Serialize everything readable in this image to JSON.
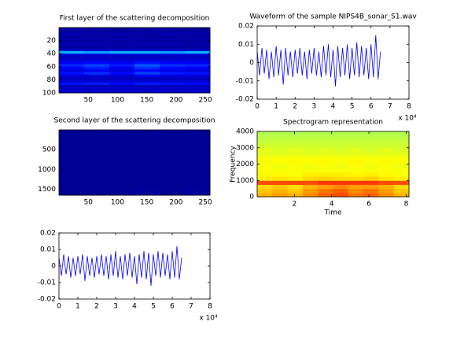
{
  "chart_data": [
    {
      "type": "heatmap",
      "title": "First layer of the scattering decomposition",
      "xlim": [
        0,
        258
      ],
      "ylim": [
        0,
        100
      ],
      "y_reversed": true,
      "xticks": [
        50,
        100,
        150,
        200,
        250
      ],
      "yticks": [
        20,
        40,
        60,
        80,
        100
      ],
      "colormap": "jet",
      "z": [
        [
          0.04,
          0.04,
          0.03,
          0.04,
          0.04,
          0.03
        ],
        [
          0.03,
          0.03,
          0.03,
          0.03,
          0.03,
          0.03
        ],
        [
          0.05,
          0.04,
          0.05,
          0.04,
          0.05,
          0.04
        ],
        [
          0.03,
          0.03,
          0.03,
          0.03,
          0.03,
          0.03
        ],
        [
          0.04,
          0.04,
          0.04,
          0.04,
          0.04,
          0.04
        ],
        [
          0.03,
          0.03,
          0.03,
          0.03,
          0.03,
          0.03
        ],
        [
          0.05,
          0.05,
          0.04,
          0.05,
          0.05,
          0.04
        ],
        [
          0.03,
          0.03,
          0.03,
          0.03,
          0.03,
          0.03
        ],
        [
          0.06,
          0.06,
          0.06,
          0.06,
          0.06,
          0.06
        ],
        [
          0.3,
          0.28,
          0.3,
          0.3,
          0.28,
          0.3
        ],
        [
          0.08,
          0.08,
          0.08,
          0.08,
          0.08,
          0.08
        ],
        [
          0.06,
          0.06,
          0.06,
          0.06,
          0.06,
          0.06
        ],
        [
          0.08,
          0.09,
          0.08,
          0.09,
          0.08,
          0.09
        ],
        [
          0.11,
          0.13,
          0.11,
          0.14,
          0.12,
          0.11
        ],
        [
          0.16,
          0.19,
          0.15,
          0.21,
          0.17,
          0.16
        ],
        [
          0.12,
          0.15,
          0.11,
          0.17,
          0.13,
          0.12
        ],
        [
          0.09,
          0.11,
          0.09,
          0.13,
          0.1,
          0.09
        ],
        [
          0.14,
          0.17,
          0.13,
          0.19,
          0.15,
          0.14
        ],
        [
          0.09,
          0.09,
          0.08,
          0.11,
          0.09,
          0.09
        ],
        [
          0.06,
          0.06,
          0.06,
          0.06,
          0.06,
          0.06
        ],
        [
          0.08,
          0.08,
          0.08,
          0.08,
          0.08,
          0.08
        ],
        [
          0.14,
          0.15,
          0.13,
          0.15,
          0.14,
          0.13
        ],
        [
          0.06,
          0.06,
          0.06,
          0.06,
          0.06,
          0.06
        ],
        [
          0.07,
          0.07,
          0.07,
          0.07,
          0.07,
          0.07
        ],
        [
          0.08,
          0.08,
          0.08,
          0.08,
          0.08,
          0.08
        ]
      ]
    },
    {
      "type": "line",
      "title": "Waveform of the sample NIPS4B_sonar_S1.wav",
      "color": "#0000ff",
      "xlim": [
        0,
        8
      ],
      "ylim": [
        -0.02,
        0.02
      ],
      "xticks": [
        0,
        1,
        2,
        3,
        4,
        5,
        6,
        7,
        8
      ],
      "yticks": [
        -0.02,
        -0.01,
        0,
        0.01,
        0.02
      ],
      "x_scale_label": "x 10⁴",
      "x": [
        0,
        0.125,
        0.25,
        0.375,
        0.5,
        0.625,
        0.75,
        0.875,
        1,
        1.125,
        1.25,
        1.375,
        1.5,
        1.625,
        1.75,
        1.875,
        2,
        2.125,
        2.25,
        2.375,
        2.5,
        2.625,
        2.75,
        2.875,
        3,
        3.125,
        3.25,
        3.375,
        3.5,
        3.625,
        3.75,
        3.875,
        4,
        4.125,
        4.25,
        4.375,
        4.5,
        4.625,
        4.75,
        4.875,
        5,
        5.125,
        5.25,
        5.375,
        5.5,
        5.625,
        5.75,
        5.875,
        6,
        6.125,
        6.25,
        6.375,
        6.5
      ],
      "values": [
        0.006,
        -0.007,
        0.008,
        -0.006,
        0.007,
        -0.009,
        0.006,
        -0.008,
        0.009,
        -0.007,
        0.007,
        -0.012,
        0.008,
        -0.007,
        0.006,
        -0.008,
        0.007,
        -0.006,
        0.008,
        -0.007,
        0.006,
        -0.009,
        0.007,
        -0.006,
        0.008,
        -0.007,
        0.006,
        -0.008,
        0.009,
        -0.007,
        0.01,
        -0.008,
        0.007,
        -0.013,
        0.009,
        -0.008,
        0.008,
        -0.007,
        0.01,
        -0.009,
        0.008,
        -0.007,
        0.011,
        -0.008,
        0.009,
        -0.007,
        0.008,
        -0.009,
        0.01,
        -0.008,
        0.015,
        -0.009,
        0.006
      ]
    },
    {
      "type": "heatmap",
      "title": "Second layer of the scattering decomposition",
      "xlim": [
        0,
        258
      ],
      "ylim": [
        0,
        1650
      ],
      "y_reversed": true,
      "xticks": [
        50,
        100,
        150,
        200,
        250
      ],
      "yticks": [
        500,
        1000,
        1500
      ],
      "colormap": "jet",
      "z": [
        [
          0.02,
          0.02,
          0.02,
          0.02,
          0.02,
          0.02
        ],
        [
          0.02,
          0.02,
          0.02,
          0.02,
          0.02,
          0.02
        ],
        [
          0.02,
          0.02,
          0.02,
          0.02,
          0.02,
          0.02
        ],
        [
          0.02,
          0.02,
          0.02,
          0.02,
          0.02,
          0.02
        ],
        [
          0.02,
          0.02,
          0.02,
          0.02,
          0.02,
          0.02
        ],
        [
          0.02,
          0.02,
          0.02,
          0.02,
          0.02,
          0.02
        ],
        [
          0.02,
          0.02,
          0.02,
          0.02,
          0.02,
          0.02
        ],
        [
          0.02,
          0.02,
          0.02,
          0.02,
          0.02,
          0.02
        ],
        [
          0.02,
          0.02,
          0.02,
          0.02,
          0.02,
          0.02
        ],
        [
          0.02,
          0.02,
          0.02,
          0.03,
          0.02,
          0.03
        ]
      ]
    },
    {
      "type": "spectrogram",
      "title": "Spectrogram representation",
      "xlabel": "Time",
      "ylabel": "Frequency",
      "xlim": [
        0,
        8.15
      ],
      "ylim": [
        0,
        4000
      ],
      "xticks": [
        2,
        4,
        6,
        8
      ],
      "yticks": [
        0,
        1000,
        2000,
        3000,
        4000
      ],
      "colormap": "jet",
      "z": [
        [
          0.7,
          0.72,
          0.7,
          0.74,
          0.78,
          0.8,
          0.76,
          0.78,
          0.74,
          0.7
        ],
        [
          0.68,
          0.7,
          0.68,
          0.72,
          0.76,
          0.78,
          0.74,
          0.76,
          0.72,
          0.68
        ],
        [
          0.66,
          0.68,
          0.66,
          0.7,
          0.72,
          0.74,
          0.72,
          0.72,
          0.7,
          0.66
        ],
        [
          0.8,
          0.8,
          0.8,
          0.8,
          0.82,
          0.82,
          0.82,
          0.82,
          0.8,
          0.8
        ],
        [
          0.64,
          0.65,
          0.64,
          0.66,
          0.67,
          0.66,
          0.66,
          0.67,
          0.65,
          0.64
        ],
        [
          0.63,
          0.63,
          0.62,
          0.64,
          0.64,
          0.64,
          0.63,
          0.64,
          0.63,
          0.62
        ],
        [
          0.62,
          0.62,
          0.62,
          0.62,
          0.62,
          0.62,
          0.62,
          0.62,
          0.62,
          0.62
        ],
        [
          0.62,
          0.61,
          0.62,
          0.61,
          0.62,
          0.61,
          0.62,
          0.61,
          0.62,
          0.61
        ],
        [
          0.63,
          0.62,
          0.63,
          0.62,
          0.63,
          0.62,
          0.63,
          0.62,
          0.63,
          0.62
        ],
        [
          0.62,
          0.62,
          0.62,
          0.62,
          0.62,
          0.62,
          0.62,
          0.62,
          0.62,
          0.62
        ],
        [
          0.6,
          0.6,
          0.6,
          0.6,
          0.6,
          0.6,
          0.6,
          0.6,
          0.6,
          0.6
        ],
        [
          0.6,
          0.59,
          0.6,
          0.59,
          0.6,
          0.59,
          0.6,
          0.59,
          0.6,
          0.59
        ],
        [
          0.58,
          0.58,
          0.58,
          0.58,
          0.58,
          0.58,
          0.58,
          0.58,
          0.58,
          0.58
        ],
        [
          0.57,
          0.57,
          0.57,
          0.57,
          0.57,
          0.57,
          0.57,
          0.57,
          0.57,
          0.57
        ],
        [
          0.56,
          0.56,
          0.56,
          0.56,
          0.56,
          0.56,
          0.56,
          0.56,
          0.56,
          0.56
        ],
        [
          0.55,
          0.55,
          0.55,
          0.55,
          0.55,
          0.55,
          0.55,
          0.55,
          0.55,
          0.55
        ]
      ]
    },
    {
      "type": "line",
      "color": "#0000ff",
      "xlim": [
        0,
        8
      ],
      "ylim": [
        -0.02,
        0.02
      ],
      "xticks": [
        0,
        1,
        2,
        3,
        4,
        5,
        6,
        7,
        8
      ],
      "yticks": [
        -0.02,
        -0.01,
        0,
        0.01,
        0.02
      ],
      "x_scale_label": "x 10⁴",
      "x": [
        0,
        0.125,
        0.25,
        0.375,
        0.5,
        0.625,
        0.75,
        0.875,
        1,
        1.125,
        1.25,
        1.375,
        1.5,
        1.625,
        1.75,
        1.875,
        2,
        2.125,
        2.25,
        2.375,
        2.5,
        2.625,
        2.75,
        2.875,
        3,
        3.125,
        3.25,
        3.375,
        3.5,
        3.625,
        3.75,
        3.875,
        4,
        4.125,
        4.25,
        4.375,
        4.5,
        4.625,
        4.75,
        4.875,
        5,
        5.125,
        5.25,
        5.375,
        5.5,
        5.625,
        5.75,
        5.875,
        6,
        6.125,
        6.25,
        6.375,
        6.5
      ],
      "values": [
        0.005,
        -0.006,
        0.007,
        -0.005,
        0.006,
        -0.007,
        0.005,
        -0.006,
        0.006,
        -0.005,
        0.007,
        -0.009,
        0.006,
        -0.006,
        0.005,
        -0.007,
        0.006,
        -0.005,
        0.007,
        -0.006,
        0.006,
        -0.008,
        0.007,
        -0.006,
        0.009,
        -0.007,
        0.006,
        -0.008,
        0.007,
        -0.006,
        0.008,
        -0.007,
        0.006,
        -0.011,
        0.007,
        -0.007,
        0.009,
        -0.008,
        0.008,
        -0.012,
        0.007,
        -0.006,
        0.009,
        -0.007,
        0.008,
        -0.006,
        0.007,
        -0.008,
        0.009,
        -0.007,
        0.012,
        -0.008,
        0.005
      ]
    }
  ]
}
